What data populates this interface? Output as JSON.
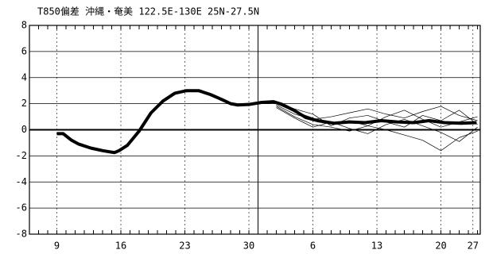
{
  "chart_data": {
    "type": "line",
    "title": "T850偏差 沖縄・奄美 122.5E-130E 25N-27.5N",
    "xlim": [
      -3.0,
      46.3
    ],
    "ylim": [
      -8,
      8
    ],
    "xticks": [
      {
        "value": 0,
        "label": "9"
      },
      {
        "value": 7,
        "label": "16"
      },
      {
        "value": 14,
        "label": "23"
      },
      {
        "value": 21,
        "label": "30"
      },
      {
        "value": 28,
        "label": "6"
      },
      {
        "value": 35,
        "label": "13"
      },
      {
        "value": 42,
        "label": "20"
      },
      {
        "value": 45.5,
        "label": "27"
      }
    ],
    "yticks": [
      -8,
      -6,
      -4,
      -2,
      0,
      2,
      4,
      6,
      8
    ],
    "grid": true,
    "forecast_start": 22.0,
    "series": [
      {
        "color": "#000000",
        "width": 4,
        "x": [
          0,
          0.7,
          1.6,
          2.4,
          3.7,
          5.0,
          6.3,
          6.8,
          7.7,
          9.0,
          10.3,
          11.6,
          12.9,
          14.2,
          15.5,
          16.8,
          18.1,
          19.0,
          19.8,
          21.1,
          22.4,
          23.7,
          24.6,
          25.9,
          27.2,
          28.5,
          30.3,
          32.0,
          33.7,
          35.5,
          37.2,
          39.0,
          40.7,
          42.4,
          44.2,
          45.9
        ],
        "values": [
          -0.3,
          -0.3,
          -0.8,
          -1.1,
          -1.4,
          -1.6,
          -1.75,
          -1.6,
          -1.2,
          -0.1,
          1.3,
          2.2,
          2.8,
          3.0,
          3.0,
          2.7,
          2.3,
          2.0,
          1.9,
          1.95,
          2.1,
          2.15,
          1.95,
          1.5,
          0.95,
          0.7,
          0.5,
          0.6,
          0.55,
          0.7,
          0.6,
          0.55,
          0.7,
          0.55,
          0.5,
          0.55
        ]
      },
      {
        "color": "#000000",
        "width": 0.7,
        "x": [
          24,
          26,
          28,
          30,
          32,
          34,
          36,
          38,
          40,
          42,
          44,
          46
        ],
        "values": [
          1.9,
          1.2,
          0.8,
          1.0,
          1.3,
          1.6,
          1.2,
          0.9,
          1.4,
          1.8,
          1.1,
          0.7
        ]
      },
      {
        "color": "#000000",
        "width": 0.7,
        "x": [
          24,
          26,
          28,
          30,
          32,
          34,
          36,
          38,
          40,
          42,
          44,
          46
        ],
        "values": [
          1.8,
          1.0,
          0.4,
          0.2,
          -0.1,
          0.3,
          0.0,
          -0.4,
          -0.8,
          -1.6,
          -0.6,
          -0.1
        ]
      },
      {
        "color": "#000000",
        "width": 0.7,
        "x": [
          24,
          26,
          28,
          30,
          32,
          34,
          36,
          38,
          40,
          42,
          44,
          46
        ],
        "values": [
          2.0,
          1.4,
          0.9,
          0.5,
          0.7,
          0.3,
          1.0,
          1.5,
          0.8,
          0.2,
          0.6,
          1.0
        ]
      },
      {
        "color": "#000000",
        "width": 0.7,
        "x": [
          24,
          26,
          28,
          30,
          32,
          34,
          36,
          38,
          40,
          42,
          44,
          46
        ],
        "values": [
          1.7,
          0.9,
          0.2,
          0.6,
          0.1,
          -0.3,
          0.4,
          0.8,
          0.3,
          -0.2,
          -0.9,
          0.2
        ]
      },
      {
        "color": "#000000",
        "width": 0.7,
        "x": [
          24,
          26,
          28,
          30,
          32,
          34,
          36,
          38,
          40,
          42,
          44,
          46
        ],
        "values": [
          2.1,
          1.6,
          1.2,
          0.3,
          0.9,
          1.1,
          0.6,
          0.2,
          1.1,
          0.7,
          1.5,
          0.4
        ]
      }
    ]
  }
}
